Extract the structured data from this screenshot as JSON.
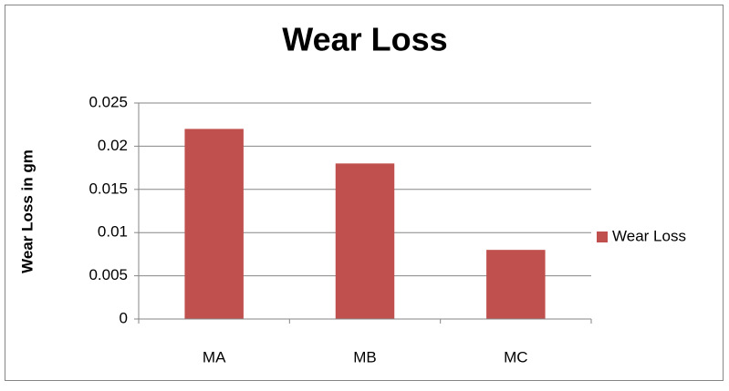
{
  "chart_data": {
    "type": "bar",
    "title": "Wear Loss",
    "y_label": "Wear Loss in gm",
    "categories": [
      "MA",
      "MB",
      "MC"
    ],
    "series": [
      {
        "name": "Wear Loss",
        "color": "#c0504d",
        "values": [
          0.022,
          0.018,
          0.008
        ]
      }
    ],
    "ylim": [
      0,
      0.025
    ],
    "yticks": [
      0,
      0.005,
      0.01,
      0.015,
      0.02,
      0.025
    ],
    "grid": true,
    "legend": "right"
  }
}
